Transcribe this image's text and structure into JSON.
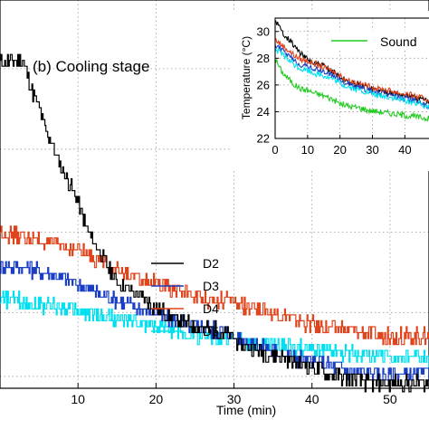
{
  "chart_data": [
    {
      "type": "line",
      "title": "(b) Cooling stage",
      "xlabel": "Time (min)",
      "ylabel": "",
      "xlim": [
        0,
        55
      ],
      "ylim": [
        21.7,
        29.9
      ],
      "xticks": [
        10,
        20,
        30,
        40,
        50
      ],
      "grid": true,
      "legend_position": "bottom-center",
      "series": [
        {
          "name": "D2",
          "color": "#000000",
          "points": [
            [
              0,
              28.6
            ],
            [
              3,
              28.6
            ],
            [
              4,
              28.0
            ],
            [
              5,
              27.6
            ],
            [
              6,
              27.1
            ],
            [
              7,
              26.7
            ],
            [
              8,
              26.3
            ],
            [
              9,
              26.0
            ],
            [
              10,
              25.6
            ],
            [
              11,
              25.1
            ],
            [
              12,
              24.8
            ],
            [
              13,
              24.5
            ],
            [
              14,
              24.2
            ],
            [
              15,
              23.95
            ],
            [
              17,
              23.75
            ],
            [
              19,
              23.5
            ],
            [
              21,
              23.3
            ],
            [
              23,
              23.1
            ],
            [
              25,
              23.0
            ],
            [
              27,
              22.95
            ],
            [
              29,
              22.85
            ],
            [
              31,
              22.6
            ],
            [
              33,
              22.5
            ],
            [
              35,
              22.4
            ],
            [
              38,
              22.25
            ],
            [
              40,
              22.15
            ],
            [
              42,
              22.0
            ],
            [
              44,
              21.95
            ],
            [
              46,
              21.85
            ],
            [
              48,
              21.8
            ],
            [
              55,
              21.8
            ]
          ]
        },
        {
          "name": "D3",
          "color": "#1a3fc4",
          "points": [
            [
              0,
              24.3
            ],
            [
              3,
              24.25
            ],
            [
              6,
              24.15
            ],
            [
              9,
              23.95
            ],
            [
              12,
              23.75
            ],
            [
              15,
              23.55
            ],
            [
              18,
              23.4
            ],
            [
              21,
              23.2
            ],
            [
              24,
              23.05
            ],
            [
              27,
              22.95
            ],
            [
              30,
              22.8
            ],
            [
              33,
              22.6
            ],
            [
              36,
              22.45
            ],
            [
              39,
              22.3
            ],
            [
              42,
              22.2
            ],
            [
              45,
              22.05
            ],
            [
              48,
              22.0
            ],
            [
              55,
              22.0
            ]
          ]
        },
        {
          "name": "D4",
          "color": "#e0441c",
          "points": [
            [
              0,
              25.0
            ],
            [
              4,
              24.85
            ],
            [
              8,
              24.7
            ],
            [
              11,
              24.55
            ],
            [
              14,
              24.3
            ],
            [
              17,
              24.05
            ],
            [
              20,
              23.9
            ],
            [
              23,
              23.75
            ],
            [
              26,
              23.6
            ],
            [
              29,
              23.55
            ],
            [
              32,
              23.4
            ],
            [
              35,
              23.3
            ],
            [
              38,
              23.15
            ],
            [
              41,
              23.0
            ],
            [
              44,
              22.95
            ],
            [
              47,
              22.85
            ],
            [
              50,
              22.8
            ],
            [
              55,
              22.8
            ]
          ]
        },
        {
          "name": "D5",
          "color": "#00e0f0",
          "points": [
            [
              0,
              23.6
            ],
            [
              4,
              23.5
            ],
            [
              8,
              23.4
            ],
            [
              11,
              23.3
            ],
            [
              14,
              23.2
            ],
            [
              17,
              23.1
            ],
            [
              20,
              23.0
            ],
            [
              23,
              22.9
            ],
            [
              26,
              22.8
            ],
            [
              29,
              22.75
            ],
            [
              32,
              22.65
            ],
            [
              35,
              22.6
            ],
            [
              38,
              22.55
            ],
            [
              41,
              22.5
            ],
            [
              44,
              22.45
            ],
            [
              47,
              22.4
            ],
            [
              50,
              22.35
            ],
            [
              55,
              22.3
            ]
          ]
        }
      ]
    },
    {
      "type": "line",
      "title": "",
      "xlabel": "",
      "ylabel": "Temperature (°C)",
      "xlim": [
        0,
        48
      ],
      "ylim": [
        22,
        31
      ],
      "xticks": [
        0,
        10,
        20,
        30,
        40
      ],
      "yticks": [
        22,
        24,
        26,
        28,
        30
      ],
      "grid": true,
      "legend_position": "top-right",
      "series": [
        {
          "name": "Sound",
          "color": "#22cc22",
          "points": [
            [
              0,
              28.0
            ],
            [
              2,
              27.0
            ],
            [
              4,
              26.5
            ],
            [
              6,
              26.0
            ],
            [
              8,
              25.7
            ],
            [
              10,
              25.6
            ],
            [
              12,
              25.4
            ],
            [
              15,
              25.2
            ],
            [
              18,
              24.9
            ],
            [
              20,
              24.6
            ],
            [
              23,
              24.4
            ],
            [
              26,
              24.3
            ],
            [
              29,
              24.1
            ],
            [
              32,
              24.0
            ],
            [
              35,
              23.9
            ],
            [
              38,
              23.8
            ],
            [
              41,
              23.7
            ],
            [
              44,
              23.6
            ],
            [
              47,
              23.5
            ]
          ]
        },
        {
          "name": "",
          "color": "#000000",
          "points": [
            [
              0,
              30.9
            ],
            [
              2,
              30.0
            ],
            [
              4,
              29.5
            ],
            [
              6,
              28.9
            ],
            [
              8,
              28.3
            ],
            [
              10,
              27.9
            ],
            [
              12,
              27.6
            ],
            [
              15,
              27.4
            ],
            [
              18,
              27.0
            ],
            [
              20,
              26.6
            ],
            [
              23,
              26.2
            ],
            [
              26,
              26.0
            ],
            [
              29,
              25.8
            ],
            [
              32,
              25.6
            ],
            [
              35,
              25.5
            ],
            [
              38,
              25.3
            ],
            [
              41,
              25.2
            ],
            [
              44,
              25.0
            ],
            [
              47,
              24.8
            ]
          ]
        },
        {
          "name": "",
          "color": "#e0441c",
          "points": [
            [
              0,
              29.4
            ],
            [
              2,
              29.0
            ],
            [
              4,
              28.6
            ],
            [
              6,
              28.2
            ],
            [
              8,
              27.9
            ],
            [
              10,
              27.8
            ],
            [
              12,
              27.6
            ],
            [
              15,
              27.3
            ],
            [
              18,
              27.0
            ],
            [
              20,
              26.7
            ],
            [
              23,
              26.3
            ],
            [
              26,
              26.1
            ],
            [
              29,
              25.9
            ],
            [
              32,
              25.7
            ],
            [
              35,
              25.6
            ],
            [
              38,
              25.4
            ],
            [
              41,
              25.3
            ],
            [
              44,
              25.1
            ],
            [
              47,
              24.9
            ]
          ]
        },
        {
          "name": "",
          "color": "#1a3fc4",
          "points": [
            [
              0,
              29.0
            ],
            [
              2,
              28.6
            ],
            [
              4,
              28.2
            ],
            [
              6,
              27.8
            ],
            [
              8,
              27.5
            ],
            [
              10,
              27.4
            ],
            [
              12,
              27.2
            ],
            [
              15,
              27.0
            ],
            [
              18,
              26.7
            ],
            [
              20,
              26.4
            ],
            [
              23,
              26.0
            ],
            [
              26,
              25.8
            ],
            [
              29,
              25.6
            ],
            [
              32,
              25.4
            ],
            [
              35,
              25.3
            ],
            [
              38,
              25.1
            ],
            [
              41,
              25.0
            ],
            [
              44,
              24.8
            ],
            [
              47,
              24.3
            ]
          ]
        },
        {
          "name": "",
          "color": "#00e0f0",
          "points": [
            [
              0,
              28.7
            ],
            [
              2,
              28.3
            ],
            [
              4,
              27.9
            ],
            [
              6,
              27.5
            ],
            [
              8,
              27.2
            ],
            [
              10,
              27.1
            ],
            [
              12,
              26.9
            ],
            [
              15,
              26.7
            ],
            [
              18,
              26.4
            ],
            [
              20,
              26.1
            ],
            [
              23,
              25.8
            ],
            [
              26,
              25.6
            ],
            [
              29,
              25.4
            ],
            [
              32,
              25.2
            ],
            [
              35,
              25.1
            ],
            [
              38,
              24.9
            ],
            [
              41,
              24.8
            ],
            [
              44,
              24.6
            ],
            [
              47,
              24.4
            ]
          ]
        }
      ]
    }
  ]
}
